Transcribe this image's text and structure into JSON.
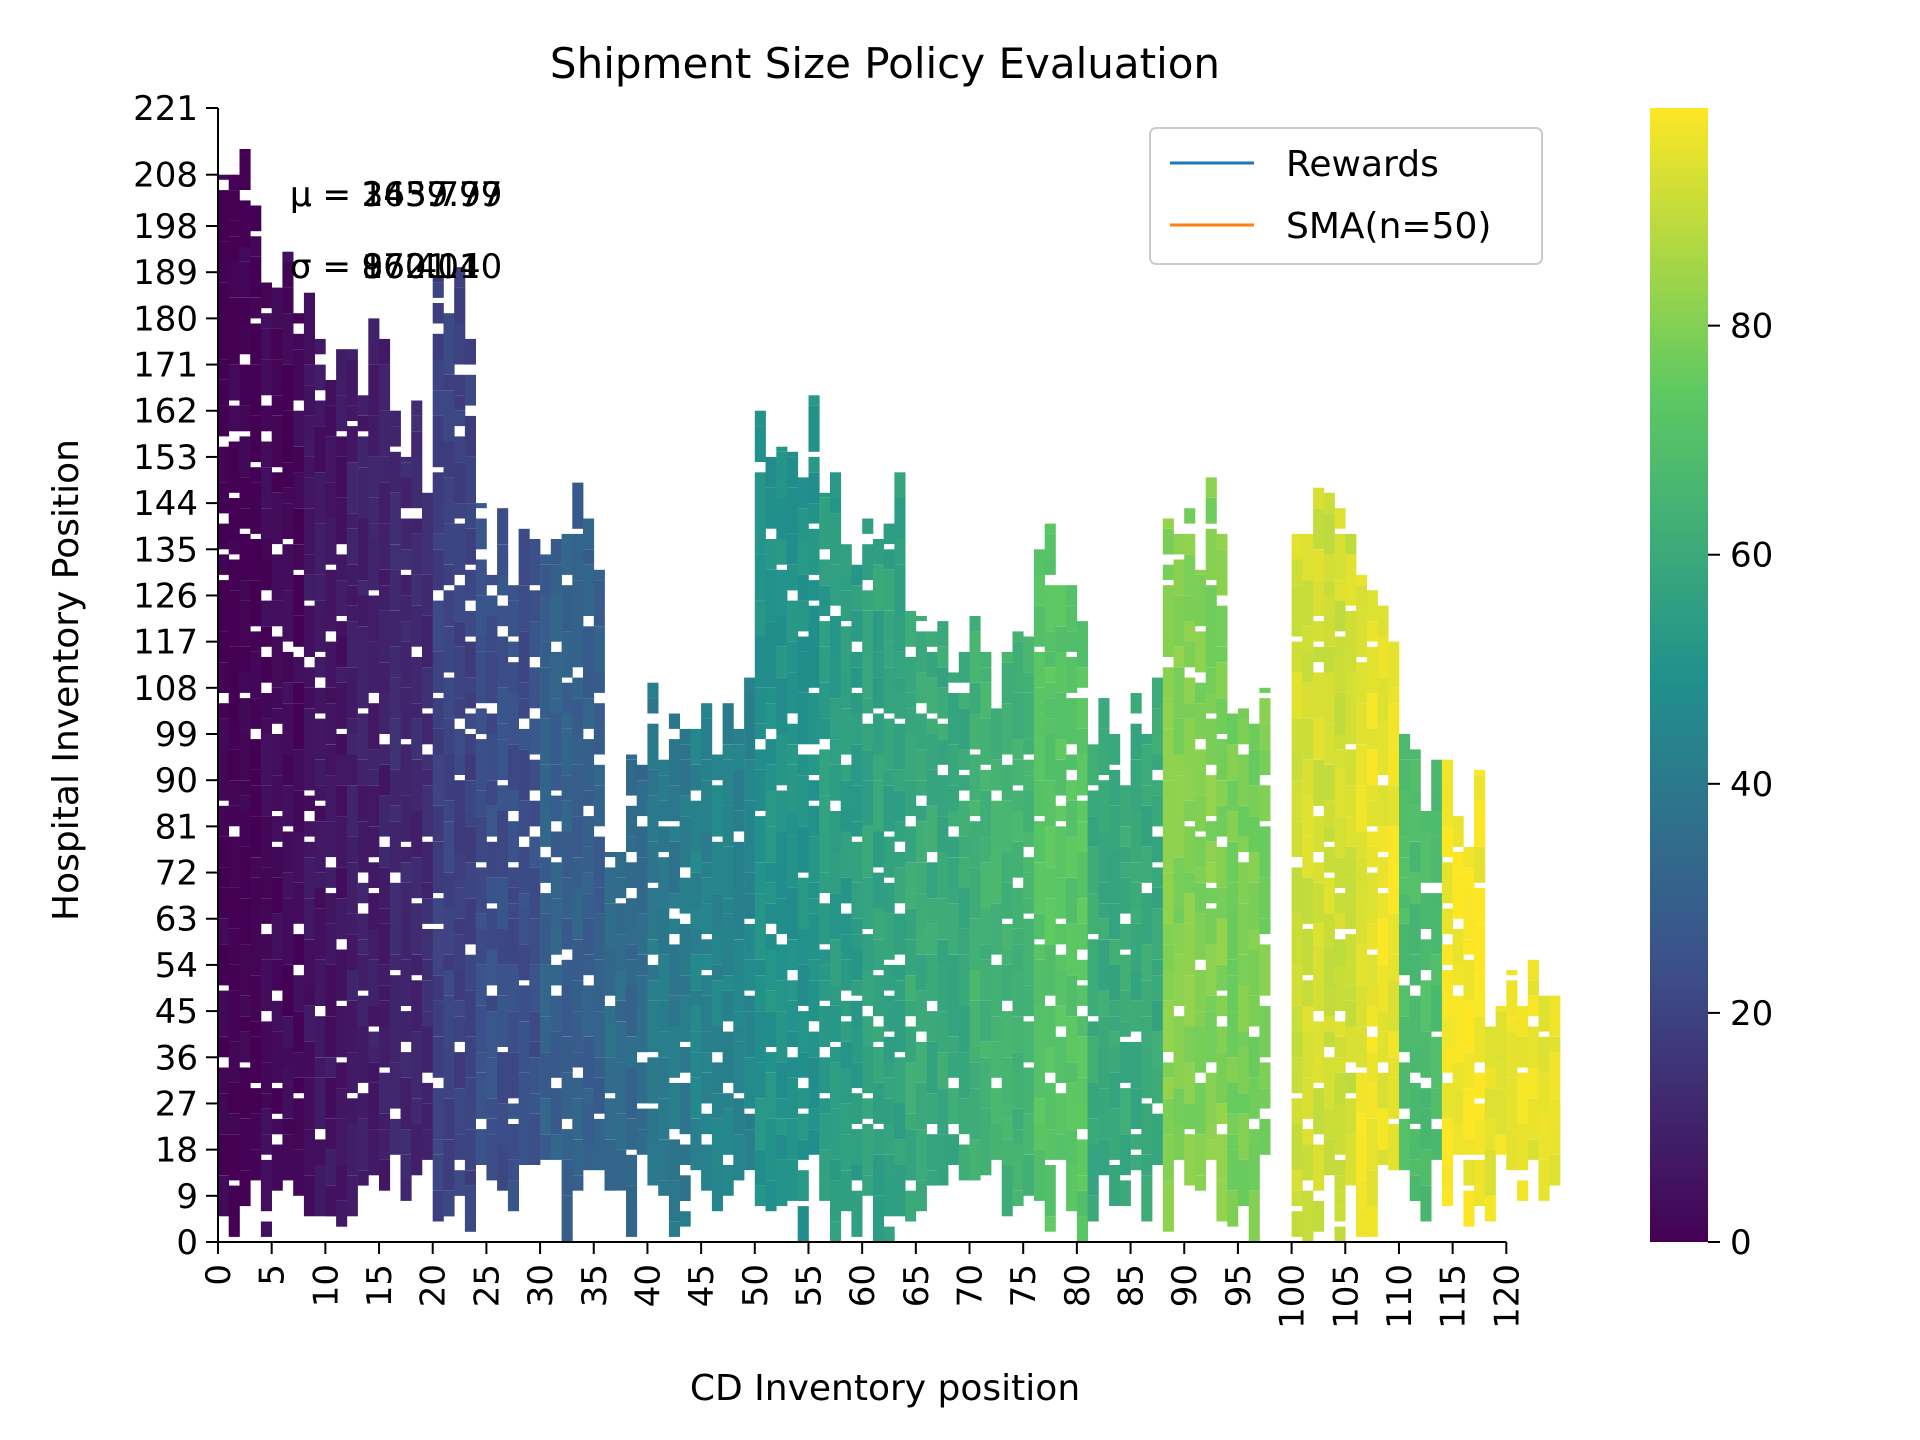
{
  "chart_data": {
    "type": "heatmap",
    "title": "Shipment Size Policy Evaluation",
    "xlabel": "CD Inventory position",
    "ylabel": "Hospital Inventory Position",
    "x_ticks": [
      "0",
      "5",
      "10",
      "15",
      "20",
      "25",
      "30",
      "35",
      "40",
      "45",
      "50",
      "55",
      "60",
      "65",
      "70",
      "75",
      "80",
      "85",
      "90",
      "95",
      "100",
      "105",
      "110",
      "115",
      "120"
    ],
    "y_ticks": [
      "0",
      "9",
      "18",
      "27",
      "36",
      "45",
      "54",
      "63",
      "72",
      "81",
      "90",
      "99",
      "108",
      "117",
      "126",
      "135",
      "144",
      "153",
      "162",
      "171",
      "180",
      "189",
      "198",
      "208",
      "221"
    ],
    "xlim": [
      0,
      125
    ],
    "ylim": [
      0,
      221
    ],
    "colorbar": {
      "colormap": "viridis",
      "range": [
        0,
        99
      ],
      "ticks": [
        "0",
        "20",
        "40",
        "60",
        "80"
      ],
      "colors": [
        "#440154",
        "#3b528b",
        "#21918c",
        "#5ec962",
        "#fde725"
      ]
    },
    "legend": {
      "placement": "upper-right",
      "entries": [
        {
          "name": "Rewards",
          "color": "#1f77b4"
        },
        {
          "name": "SMA(n=50)",
          "color": "#ff7f0e"
        }
      ]
    },
    "overlapping_annotations": {
      "mu": [
        "μ = 1439.79",
        "μ = 2437.97",
        "μ = 365.79"
      ],
      "sigma": [
        "σ = 1601.10",
        "σ = 872.14",
        "σ = 96.40"
      ]
    },
    "column_groups": [
      {
        "x_range": [
          0,
          4
        ],
        "value": 0,
        "y_max": 221
      },
      {
        "x_range": [
          4,
          8
        ],
        "value": 2,
        "y_max": 195
      },
      {
        "x_range": [
          8,
          12
        ],
        "value": 6,
        "y_max": 185
      },
      {
        "x_range": [
          12,
          16
        ],
        "value": 9,
        "y_max": 182
      },
      {
        "x_range": [
          16,
          20
        ],
        "value": 12,
        "y_max": 165
      },
      {
        "x_range": [
          20,
          24
        ],
        "value": 20,
        "y_max": 190
      },
      {
        "x_range": [
          24,
          30
        ],
        "value": 24,
        "y_max": 145
      },
      {
        "x_range": [
          30,
          36
        ],
        "value": 30,
        "y_max": 150
      },
      {
        "x_range": [
          36,
          40
        ],
        "value": 34,
        "y_max": 95
      },
      {
        "x_range": [
          40,
          44
        ],
        "value": 40,
        "y_max": 112
      },
      {
        "x_range": [
          44,
          50
        ],
        "value": 44,
        "y_max": 110
      },
      {
        "x_range": [
          50,
          56
        ],
        "value": 50,
        "y_max": 165
      },
      {
        "x_range": [
          56,
          60
        ],
        "value": 54,
        "y_max": 150
      },
      {
        "x_range": [
          60,
          64
        ],
        "value": 57,
        "y_max": 155
      },
      {
        "x_range": [
          64,
          70
        ],
        "value": 60,
        "y_max": 125
      },
      {
        "x_range": [
          70,
          76
        ],
        "value": 64,
        "y_max": 125
      },
      {
        "x_range": [
          76,
          81
        ],
        "value": 72,
        "y_max": 140
      },
      {
        "x_range": [
          81,
          88
        ],
        "value": 60,
        "y_max": 110
      },
      {
        "x_range": [
          88,
          94
        ],
        "value": 80,
        "y_max": 150
      },
      {
        "x_range": [
          94,
          98
        ],
        "value": 78,
        "y_max": 110
      },
      {
        "x_range": [
          100,
          106
        ],
        "value": 92,
        "y_max": 155
      },
      {
        "x_range": [
          106,
          110
        ],
        "value": 96,
        "y_max": 130
      },
      {
        "x_range": [
          110,
          114
        ],
        "value": 68,
        "y_max": 100
      },
      {
        "x_range": [
          114,
          118
        ],
        "value": 98,
        "y_max": 95
      },
      {
        "x_range": [
          118,
          125
        ],
        "value": 96,
        "y_max": 62
      }
    ]
  }
}
